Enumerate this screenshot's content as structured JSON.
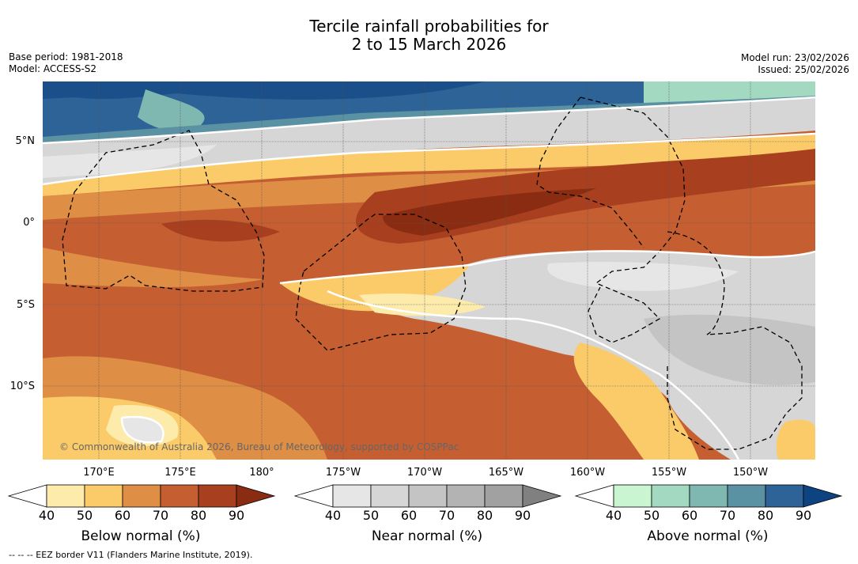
{
  "title_line1": "Tercile rainfall probabilities for",
  "title_line2": "2 to 15 March 2026",
  "base_period": "Base period: 1981-2018",
  "model": "Model: ACCESS-S2",
  "model_run": "Model run: 23/02/2026",
  "issued": "Issued: 25/02/2026",
  "lat_labels": [
    "5°N",
    "0°",
    "5°S",
    "10°S"
  ],
  "lon_labels": [
    "170°E",
    "175°E",
    "180°",
    "175°W",
    "170°W",
    "165°W",
    "160°W",
    "155°W",
    "150°W"
  ],
  "copyright": "© Commonwealth of Australia 2026, Bureau of Meteorology, supported by COSPPac",
  "colorbars": [
    {
      "label": "Below normal (%)",
      "ticks": [
        "40",
        "50",
        "60",
        "70",
        "80",
        "90"
      ],
      "colors": [
        "#ffffff",
        "#fcebab",
        "#fbcb6a",
        "#de8e45",
        "#c55f31",
        "#a8401f",
        "#8a2c12"
      ]
    },
    {
      "label": "Near normal (%)",
      "ticks": [
        "40",
        "50",
        "60",
        "70",
        "80",
        "90"
      ],
      "colors": [
        "#ffffff",
        "#e6e6e6",
        "#d6d6d6",
        "#c4c4c4",
        "#b3b3b3",
        "#a1a1a1",
        "#808080"
      ]
    },
    {
      "label": "Above normal (%)",
      "ticks": [
        "40",
        "50",
        "60",
        "70",
        "80",
        "90"
      ],
      "colors": [
        "#ffffff",
        "#c9f5d0",
        "#a3d8c1",
        "#7fb8b0",
        "#5a91a3",
        "#2d6396",
        "#0e4382"
      ]
    }
  ],
  "eez_note": "--  --  -- EEZ border V11 (Flanders Marine Institute, 2019)."
}
